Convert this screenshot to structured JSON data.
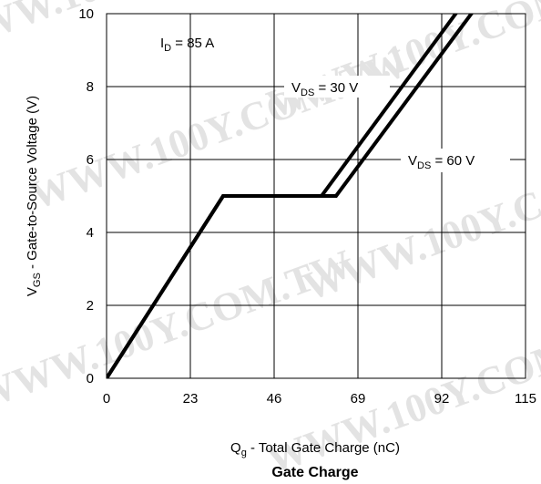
{
  "watermark": "WWW.100Y.COM.TW",
  "chart_data": {
    "type": "line",
    "title": "Gate Charge",
    "xlabel": {
      "main": "Q",
      "sub": "g",
      "rest": " - Total Gate Charge (nC)"
    },
    "ylabel": {
      "main": "V",
      "sub": "GS",
      "rest": " - Gate-to-Source Voltage (V)"
    },
    "xlim": [
      0,
      115
    ],
    "ylim": [
      0,
      10
    ],
    "xticks": [
      0,
      23,
      46,
      69,
      92,
      115
    ],
    "yticks": [
      0,
      2,
      4,
      6,
      8,
      10
    ],
    "grid": true,
    "condition": {
      "main": "I",
      "sub": "D",
      "rest": " = 85 A"
    },
    "series": [
      {
        "name": {
          "main": "V",
          "sub": "DS",
          "rest": " = 30 V"
        },
        "x": [
          0,
          32,
          59,
          115
        ],
        "y": [
          0,
          5,
          5,
          12.6
        ]
      },
      {
        "name": {
          "main": "V",
          "sub": "DS",
          "rest": " = 60 V"
        },
        "x": [
          0,
          32,
          63,
          115
        ],
        "y": [
          0,
          5,
          5,
          12.0
        ]
      }
    ]
  }
}
